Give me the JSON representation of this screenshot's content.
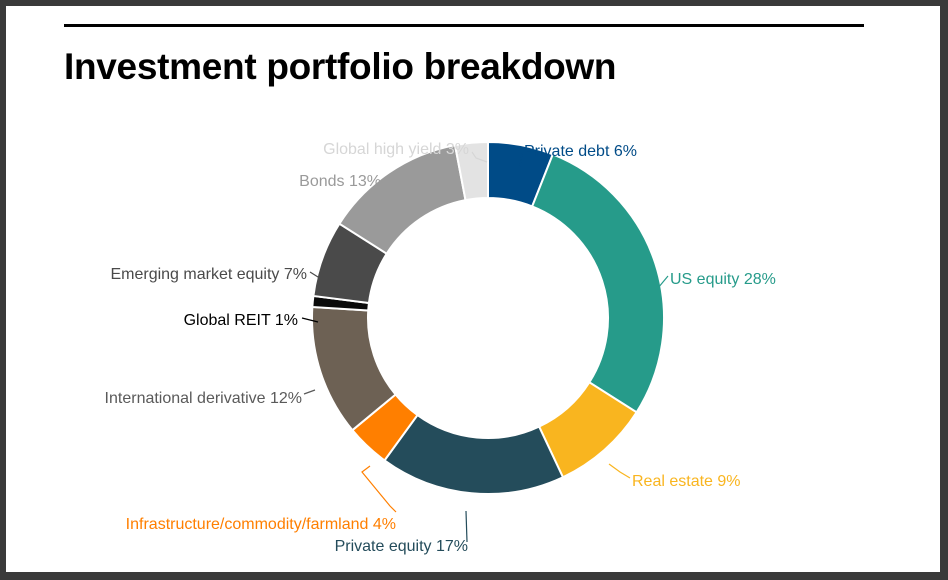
{
  "title": "Investment portfolio breakdown",
  "chart_data": {
    "type": "pie",
    "donut": true,
    "title": "Investment portfolio breakdown",
    "categories": [
      "Private debt",
      "US equity",
      "Real estate",
      "Private equity",
      "Infrastructure/commodity/farmland",
      "International derivative",
      "Global REIT",
      "Emerging market equity",
      "Bonds",
      "Global high yield"
    ],
    "values": [
      6,
      28,
      9,
      17,
      4,
      12,
      1,
      7,
      13,
      3
    ],
    "labels": [
      "Private debt 6%",
      "US equity 28%",
      "Real estate 9%",
      "Private equity 17%",
      "Infrastructure/commodity/farmland 4%",
      "International derivative 12%",
      "Global REIT 1%",
      "Emerging market equity 7%",
      "Bonds 13%",
      "Global high yield 3%"
    ],
    "colors": [
      "#004b87",
      "#269b8a",
      "#f9b51f",
      "#244c5b",
      "#ff7f00",
      "#6d6154",
      "#0a0a0a",
      "#4a4a4a",
      "#9a9a9a",
      "#e3e3e3"
    ],
    "label_colors": [
      "#004b87",
      "#269b8a",
      "#f9b51f",
      "#244c5b",
      "#ff7f00",
      "#5a5a5a",
      "#000000",
      "#4a4a4a",
      "#9a9a9a",
      "#d6d6d6"
    ],
    "legend": "none"
  }
}
